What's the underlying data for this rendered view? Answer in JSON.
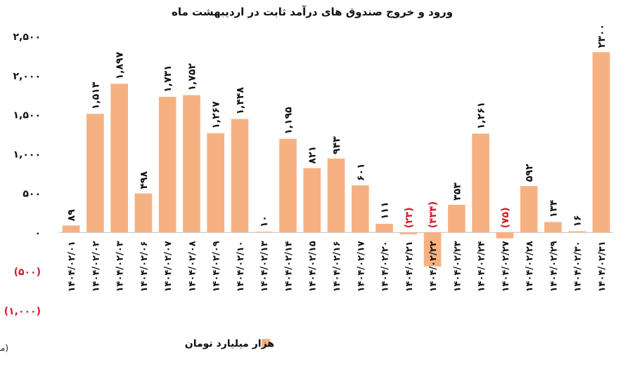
{
  "chart_data": {
    "type": "bar",
    "title": "ورود و خروج صندوق های درآمد ثابت در اردیبهشت ماه",
    "source": "(منبع پارسیس)",
    "series": [
      {
        "name": "هزار میلیارد تومان",
        "color": "#F6B183"
      }
    ],
    "ylim": [
      -1000,
      2500
    ],
    "yticks": [
      {
        "value": 2500,
        "label": "۲,۵۰۰"
      },
      {
        "value": 2000,
        "label": "۲,۰۰۰"
      },
      {
        "value": 1500,
        "label": "۱,۵۰۰"
      },
      {
        "value": 1000,
        "label": "۱,۰۰۰"
      },
      {
        "value": 500,
        "label": "۵۰۰"
      },
      {
        "value": 0,
        "label": "۰"
      },
      {
        "value": -500,
        "label": "(۵۰۰)"
      },
      {
        "value": -1000,
        "label": "(۱,۰۰۰)"
      }
    ],
    "negative_color": "#d01f2a",
    "grid": false,
    "legend_position": "bottom",
    "categories": [
      "۱۴۰۴/۰۲/۰۱",
      "۱۴۰۴/۰۲/۰۲",
      "۱۴۰۴/۰۲/۰۳",
      "۱۴۰۴/۰۲/۰۶",
      "۱۴۰۴/۰۲/۰۷",
      "۱۴۰۴/۰۲/۰۸",
      "۱۴۰۴/۰۲/۰۹",
      "۱۴۰۴/۰۲/۱۰",
      "۱۴۰۴/۰۲/۱۳",
      "۱۴۰۴/۰۲/۱۴",
      "۱۴۰۴/۰۲/۱۵",
      "۱۴۰۴/۰۲/۱۶",
      "۱۴۰۴/۰۲/۱۷",
      "۱۴۰۴/۰۲/۲۰",
      "۱۴۰۴/۰۲/۲۱",
      "۱۴۰۴/۰۲/۲۲",
      "۱۴۰۴/۰۲/۲۳",
      "۱۴۰۴/۰۲/۲۴",
      "۱۴۰۴/۰۲/۲۷",
      "۱۴۰۴/۰۲/۲۸",
      "۱۴۰۴/۰۲/۲۹",
      "۱۴۰۴/۰۲/۳۰",
      "۱۴۰۴/۰۲/۳۱"
    ],
    "values": [
      89,
      1513,
      1897,
      498,
      1731,
      1752,
      1267,
      1448,
      10,
      1195,
      821,
      943,
      601,
      111,
      -23,
      -434,
      353,
      1261,
      -75,
      592,
      134,
      16,
      2300
    ],
    "value_labels": [
      "۸۹",
      "۱,۵۱۳",
      "۱,۸۹۷",
      "۴۹۸",
      "۱,۷۳۱",
      "۱,۷۵۲",
      "۱,۲۶۷",
      "۱,۴۴۸",
      "۱۰",
      "۱,۱۹۵",
      "۸۲۱",
      "۹۴۳",
      "۶۰۱",
      "۱۱۱",
      "(۲۳)",
      "(۴۳۴)",
      "۳۵۳",
      "۱,۲۶۱",
      "(۷۵)",
      "۵۹۲",
      "۱۳۴",
      "۱۶",
      "۲۳۰۰"
    ]
  }
}
